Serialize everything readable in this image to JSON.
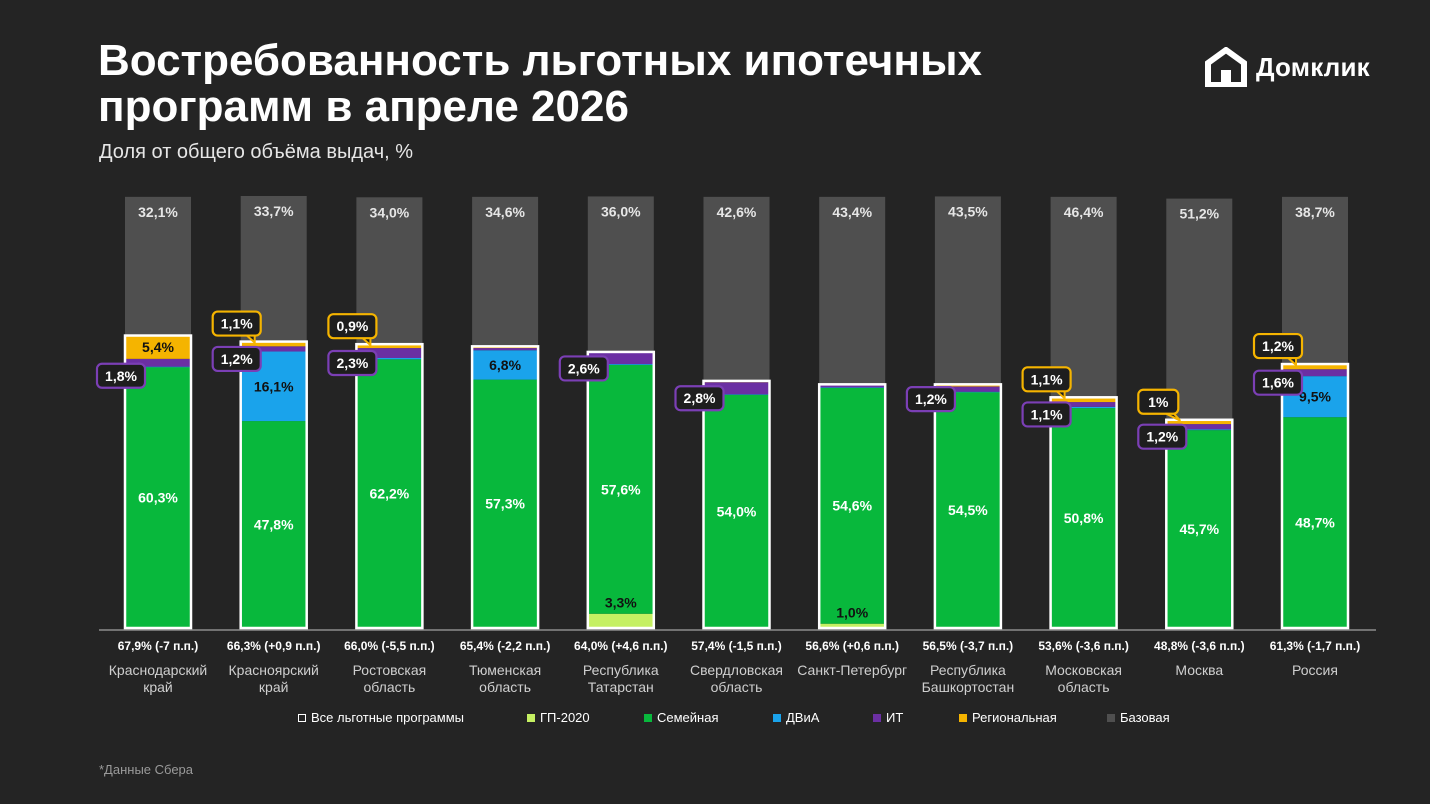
{
  "title": "Востребованность льготных ипотечных программ в апреле 2026",
  "subtitle": "Доля от общего объёма выдач, %",
  "brand": "Домклик",
  "footnote": "*Данные Сбера",
  "colors": {
    "background": "#242424",
    "gp2020": "#c5f062",
    "family": "#08b83c",
    "dvia": "#1aa3eb",
    "it": "#6b2fa3",
    "regional": "#f5b400",
    "base": "#4f4f4f",
    "outline": "#ffffff"
  },
  "legend": [
    {
      "label": "Все льготные программы",
      "color_key": "outline"
    },
    {
      "label": "ГП-2020",
      "color_key": "gp2020"
    },
    {
      "label": "Семейная",
      "color_key": "family"
    },
    {
      "label": "ДВиА",
      "color_key": "dvia"
    },
    {
      "label": "ИТ",
      "color_key": "it"
    },
    {
      "label": "Региональная",
      "color_key": "regional"
    },
    {
      "label": "Базовая",
      "color_key": "base"
    }
  ],
  "chart_data": {
    "type": "bar",
    "stacked": true,
    "y_range": [
      0,
      100
    ],
    "categories": [
      [
        "Краснодарский",
        "край"
      ],
      [
        "Красноярский",
        "край"
      ],
      [
        "Ростовская",
        "область"
      ],
      [
        "Тюменская",
        "область"
      ],
      [
        "Республика",
        "Татарстан"
      ],
      [
        "Свердловская",
        "область"
      ],
      [
        "Санкт-Петербург"
      ],
      [
        "Республика",
        "Башкортостан"
      ],
      [
        "Московская",
        "область"
      ],
      [
        "Москва"
      ],
      [
        "Россия"
      ]
    ],
    "totals_labels": [
      "67,9% (-7 п.п.)",
      "66,3% (+0,9 п.п.)",
      "66,0% (-5,5 п.п.)",
      "65,4% (-2,2 п.п.)",
      "64,0% (+4,6 п.п.)",
      "57,4% (-1,5 п.п.)",
      "56,6% (+0,6 п.п.)",
      "56,5% (-3,7 п.п.)",
      "53,6% (-3,6 п.п.)",
      "48,8% (-3,6 п.п.)",
      "61,3% (-1,7 п.п.)"
    ],
    "series": [
      {
        "name": "ГП-2020",
        "values": [
          0.1,
          0.1,
          0.0,
          0.2,
          3.3,
          0.0,
          1.0,
          0.1,
          0.1,
          0.1,
          0.1
        ]
      },
      {
        "name": "Семейная",
        "values": [
          60.3,
          47.8,
          62.2,
          57.3,
          57.6,
          54.0,
          54.6,
          54.5,
          50.8,
          45.7,
          48.7
        ]
      },
      {
        "name": "ДВиА",
        "values": [
          0.1,
          16.1,
          0.3,
          6.8,
          0.2,
          0.1,
          0.1,
          0.1,
          0.3,
          0.2,
          9.5
        ]
      },
      {
        "name": "ИТ",
        "values": [
          1.8,
          1.2,
          2.3,
          0.5,
          2.6,
          2.8,
          0.5,
          1.2,
          1.1,
          1.2,
          1.6
        ]
      },
      {
        "name": "Региональная",
        "values": [
          5.4,
          1.1,
          0.9,
          0.4,
          0.2,
          0.3,
          0.2,
          0.5,
          1.1,
          1.0,
          1.2
        ]
      },
      {
        "name": "Базовая",
        "values": [
          32.1,
          33.7,
          34.0,
          34.6,
          36.0,
          42.6,
          43.4,
          43.5,
          46.4,
          51.2,
          38.7
        ]
      }
    ],
    "data_labels": {
      "base": [
        "32,1%",
        "33,7%",
        "34,0%",
        "34,6%",
        "36,0%",
        "42,6%",
        "43,4%",
        "43,5%",
        "46,4%",
        "51,2%",
        "38,7%"
      ],
      "family": [
        "60,3%",
        "47,8%",
        "62,2%",
        "57,3%",
        "57,6%",
        "54,0%",
        "54,6%",
        "54,5%",
        "50,8%",
        "45,7%",
        "48,7%"
      ],
      "dvia": [
        "",
        "16,1%",
        "",
        "6,8%",
        "",
        "",
        "",
        "",
        "",
        "",
        "9,5%"
      ],
      "gp2020": [
        "",
        "",
        "",
        "",
        "3,3%",
        "",
        "1,0%",
        "",
        "",
        "",
        ""
      ],
      "regional_inside": [
        "5,4%",
        "",
        "",
        "",
        "",
        "",
        "",
        "",
        "",
        "",
        ""
      ],
      "it_callout": [
        "1,8%",
        "1,2%",
        "2,3%",
        "",
        "2,6%",
        "2,8%",
        "",
        "1,2%",
        "1,1%",
        "1,2%",
        "1,6%"
      ],
      "regional_callout": [
        "",
        "1,1%",
        "0,9%",
        "",
        "",
        "",
        "",
        "",
        "1,1%",
        "1%",
        "1,2%"
      ]
    }
  }
}
